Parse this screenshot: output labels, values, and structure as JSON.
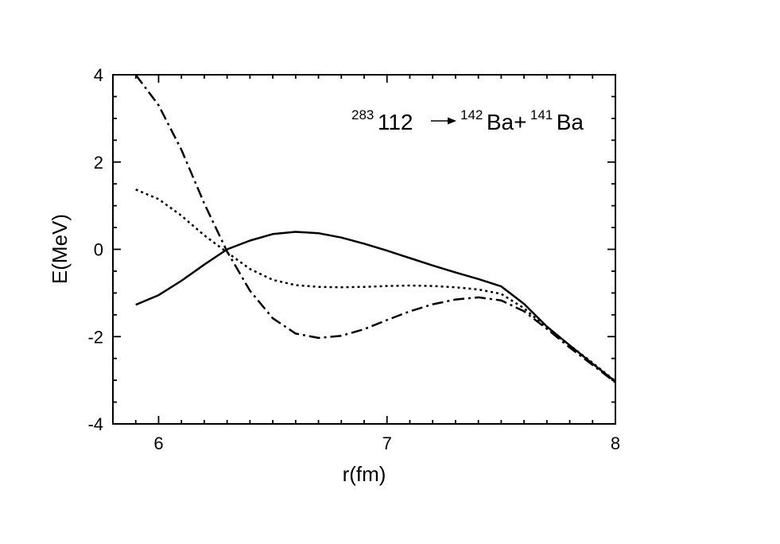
{
  "chart_data": {
    "type": "line",
    "xlabel": "r(fm)",
    "ylabel": "E(MeV)",
    "xlim": [
      5.8,
      8.0
    ],
    "ylim": [
      -4,
      4
    ],
    "x_major_ticks": [
      6,
      7,
      8
    ],
    "x_tick_labels": [
      "6",
      "7",
      "8"
    ],
    "y_major_ticks": [
      -4,
      -2,
      0,
      2,
      4
    ],
    "y_tick_labels": [
      "-4",
      "-2",
      "0",
      "2",
      "4"
    ],
    "grid": false,
    "annotation": {
      "parent_mass": "283",
      "parent_label": "112",
      "arrow": "→",
      "fragment1_mass": "142",
      "fragment1_label": "Ba+",
      "fragment2_mass": "141",
      "fragment2_label": "Ba"
    },
    "series": [
      {
        "style": "solid",
        "x": [
          5.9,
          6.0,
          6.1,
          6.2,
          6.3,
          6.4,
          6.5,
          6.6,
          6.7,
          6.8,
          6.9,
          7.0,
          7.1,
          7.2,
          7.3,
          7.4,
          7.5,
          7.6,
          7.7,
          7.8,
          7.9,
          8.0
        ],
        "y": [
          -1.27,
          -1.05,
          -0.72,
          -0.35,
          0.0,
          0.2,
          0.35,
          0.4,
          0.37,
          0.27,
          0.13,
          -0.03,
          -0.2,
          -0.37,
          -0.53,
          -0.68,
          -0.85,
          -1.25,
          -1.77,
          -2.2,
          -2.62,
          -3.03
        ]
      },
      {
        "style": "dotted",
        "x": [
          5.9,
          6.0,
          6.1,
          6.2,
          6.3,
          6.4,
          6.5,
          6.6,
          6.7,
          6.8,
          6.9,
          7.0,
          7.1,
          7.2,
          7.3,
          7.4,
          7.5,
          7.6,
          7.7,
          7.8,
          7.9,
          8.0
        ],
        "y": [
          1.37,
          1.15,
          0.77,
          0.32,
          -0.07,
          -0.45,
          -0.7,
          -0.82,
          -0.86,
          -0.87,
          -0.86,
          -0.84,
          -0.83,
          -0.84,
          -0.87,
          -0.92,
          -1.02,
          -1.35,
          -1.8,
          -2.2,
          -2.6,
          -3.02
        ]
      },
      {
        "style": "dash-dot",
        "x": [
          5.9,
          6.0,
          6.1,
          6.2,
          6.3,
          6.4,
          6.5,
          6.6,
          6.7,
          6.8,
          6.9,
          7.0,
          7.1,
          7.2,
          7.3,
          7.4,
          7.5,
          7.6,
          7.7,
          7.8,
          7.9,
          8.0
        ],
        "y": [
          4.0,
          3.3,
          2.28,
          1.05,
          -0.05,
          -0.95,
          -1.58,
          -1.93,
          -2.03,
          -1.98,
          -1.83,
          -1.62,
          -1.42,
          -1.26,
          -1.15,
          -1.1,
          -1.17,
          -1.42,
          -1.82,
          -2.25,
          -2.65,
          -3.05
        ]
      }
    ]
  }
}
